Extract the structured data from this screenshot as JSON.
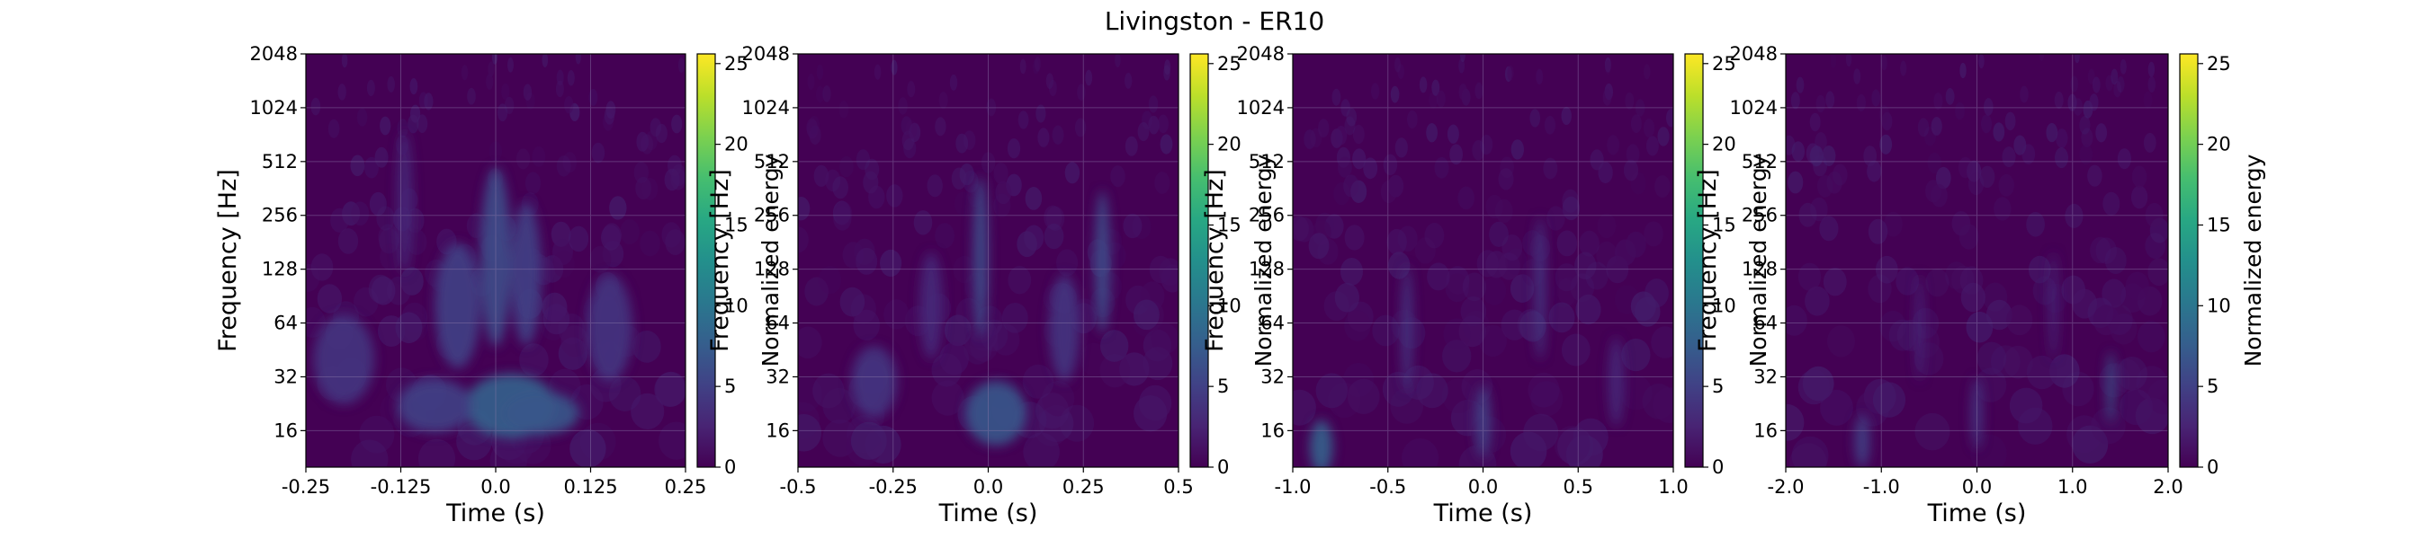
{
  "figure": {
    "title": "Livingston - ER10"
  },
  "colors": {
    "viridis_low": "#440154",
    "viridis_mid": "#21918c",
    "viridis_high": "#fde725",
    "grid": "#8a78a8"
  },
  "chart_data": [
    {
      "type": "heatmap",
      "xlabel": "Time (s)",
      "ylabel": "Frequency [Hz]",
      "x_ticks": [
        "-0.25",
        "-0.125",
        "0.0",
        "0.125",
        "0.25"
      ],
      "x_tick_values": [
        -0.25,
        -0.125,
        0.0,
        0.125,
        0.25
      ],
      "xlim": [
        -0.25,
        0.25
      ],
      "y_ticks": [
        "16",
        "32",
        "64",
        "128",
        "256",
        "512",
        "1024",
        "2048"
      ],
      "y_tick_values": [
        16,
        32,
        64,
        128,
        256,
        512,
        1024,
        2048
      ],
      "ylim": [
        10,
        2048
      ],
      "yscale": "log",
      "colorbar_label": "Normalized energy",
      "colorbar_ticks": [
        "0",
        "5",
        "10",
        "15",
        "20",
        "25"
      ],
      "colorbar_tick_values": [
        0,
        5,
        10,
        15,
        20,
        25
      ],
      "colorbar_range": [
        0,
        25.6
      ],
      "grid": true,
      "colormap": "viridis",
      "features": [
        {
          "t": 0.02,
          "f": 22,
          "dt": 0.06,
          "df": 0.18,
          "e": 8
        },
        {
          "t": 0.06,
          "f": 20,
          "dt": 0.05,
          "df": 0.12,
          "e": 7
        },
        {
          "t": -0.08,
          "f": 22,
          "dt": 0.05,
          "df": 0.15,
          "e": 5
        },
        {
          "t": -0.05,
          "f": 80,
          "dt": 0.03,
          "df": 0.35,
          "e": 5
        },
        {
          "t": 0.0,
          "f": 150,
          "dt": 0.02,
          "df": 0.5,
          "e": 6
        },
        {
          "t": 0.04,
          "f": 120,
          "dt": 0.02,
          "df": 0.4,
          "e": 5
        },
        {
          "t": -0.2,
          "f": 40,
          "dt": 0.04,
          "df": 0.25,
          "e": 4
        },
        {
          "t": 0.15,
          "f": 60,
          "dt": 0.03,
          "df": 0.3,
          "e": 4
        },
        {
          "t": -0.12,
          "f": 300,
          "dt": 0.01,
          "df": 0.4,
          "e": 3
        }
      ]
    },
    {
      "type": "heatmap",
      "xlabel": "Time (s)",
      "ylabel": "Frequency [Hz]",
      "x_ticks": [
        "-0.5",
        "-0.25",
        "0.0",
        "0.25",
        "0.5"
      ],
      "x_tick_values": [
        -0.5,
        -0.25,
        0.0,
        0.25,
        0.5
      ],
      "xlim": [
        -0.5,
        0.5
      ],
      "y_ticks": [
        "16",
        "32",
        "64",
        "128",
        "256",
        "512",
        "1024",
        "2048"
      ],
      "y_tick_values": [
        16,
        32,
        64,
        128,
        256,
        512,
        1024,
        2048
      ],
      "ylim": [
        10,
        2048
      ],
      "yscale": "log",
      "colorbar_label": "Normalized energy",
      "colorbar_ticks": [
        "0",
        "5",
        "10",
        "15",
        "20",
        "25"
      ],
      "colorbar_tick_values": [
        0,
        5,
        10,
        15,
        20,
        25
      ],
      "colorbar_range": [
        0,
        25.6
      ],
      "grid": true,
      "colormap": "viridis",
      "features": [
        {
          "t": 0.02,
          "f": 20,
          "dt": 0.08,
          "df": 0.18,
          "e": 7
        },
        {
          "t": -0.02,
          "f": 150,
          "dt": 0.02,
          "df": 0.45,
          "e": 6
        },
        {
          "t": 0.3,
          "f": 140,
          "dt": 0.02,
          "df": 0.4,
          "e": 6
        },
        {
          "t": -0.3,
          "f": 30,
          "dt": 0.06,
          "df": 0.2,
          "e": 4
        },
        {
          "t": 0.2,
          "f": 60,
          "dt": 0.04,
          "df": 0.3,
          "e": 4
        },
        {
          "t": -0.15,
          "f": 80,
          "dt": 0.03,
          "df": 0.3,
          "e": 3
        }
      ]
    },
    {
      "type": "heatmap",
      "xlabel": "Time (s)",
      "ylabel": "Frequency [Hz]",
      "x_ticks": [
        "-1.0",
        "-0.5",
        "0.0",
        "0.5",
        "1.0"
      ],
      "x_tick_values": [
        -1.0,
        -0.5,
        0.0,
        0.5,
        1.0
      ],
      "xlim": [
        -1.0,
        1.0
      ],
      "y_ticks": [
        "16",
        "32",
        "64",
        "128",
        "256",
        "512",
        "1024",
        "2048"
      ],
      "y_tick_values": [
        16,
        32,
        64,
        128,
        256,
        512,
        1024,
        2048
      ],
      "ylim": [
        10,
        2048
      ],
      "yscale": "log",
      "colorbar_label": "Normalized energy",
      "colorbar_ticks": [
        "0",
        "5",
        "10",
        "15",
        "20",
        "25"
      ],
      "colorbar_tick_values": [
        0,
        5,
        10,
        15,
        20,
        25
      ],
      "colorbar_range": [
        0,
        25.6
      ],
      "grid": true,
      "colormap": "viridis",
      "features": [
        {
          "t": -0.85,
          "f": 13,
          "dt": 0.06,
          "df": 0.15,
          "e": 8
        },
        {
          "t": 0.0,
          "f": 18,
          "dt": 0.04,
          "df": 0.2,
          "e": 5
        },
        {
          "t": -0.4,
          "f": 60,
          "dt": 0.03,
          "df": 0.35,
          "e": 4
        },
        {
          "t": 0.3,
          "f": 100,
          "dt": 0.03,
          "df": 0.4,
          "e": 4
        },
        {
          "t": 0.7,
          "f": 30,
          "dt": 0.04,
          "df": 0.25,
          "e": 3
        }
      ]
    },
    {
      "type": "heatmap",
      "xlabel": "Time (s)",
      "ylabel": "Frequency [Hz]",
      "x_ticks": [
        "-2.0",
        "-1.0",
        "0.0",
        "1.0",
        "2.0"
      ],
      "x_tick_values": [
        -2.0,
        -1.0,
        0.0,
        1.0,
        2.0
      ],
      "xlim": [
        -2.0,
        2.0
      ],
      "y_ticks": [
        "16",
        "32",
        "64",
        "128",
        "256",
        "512",
        "1024",
        "2048"
      ],
      "y_tick_values": [
        16,
        32,
        64,
        128,
        256,
        512,
        1024,
        2048
      ],
      "ylim": [
        10,
        2048
      ],
      "yscale": "log",
      "colorbar_label": "Normalized energy",
      "colorbar_ticks": [
        "0",
        "5",
        "10",
        "15",
        "20",
        "25"
      ],
      "colorbar_tick_values": [
        0,
        5,
        10,
        15,
        20,
        25
      ],
      "colorbar_range": [
        0,
        25.6
      ],
      "grid": true,
      "colormap": "viridis",
      "features": [
        {
          "t": 1.4,
          "f": 28,
          "dt": 0.04,
          "df": 0.2,
          "e": 7
        },
        {
          "t": -1.2,
          "f": 14,
          "dt": 0.08,
          "df": 0.15,
          "e": 5
        },
        {
          "t": 0.0,
          "f": 20,
          "dt": 0.06,
          "df": 0.2,
          "e": 4
        },
        {
          "t": -0.6,
          "f": 60,
          "dt": 0.04,
          "df": 0.3,
          "e": 3
        },
        {
          "t": 0.8,
          "f": 80,
          "dt": 0.04,
          "df": 0.3,
          "e": 3
        }
      ]
    }
  ]
}
